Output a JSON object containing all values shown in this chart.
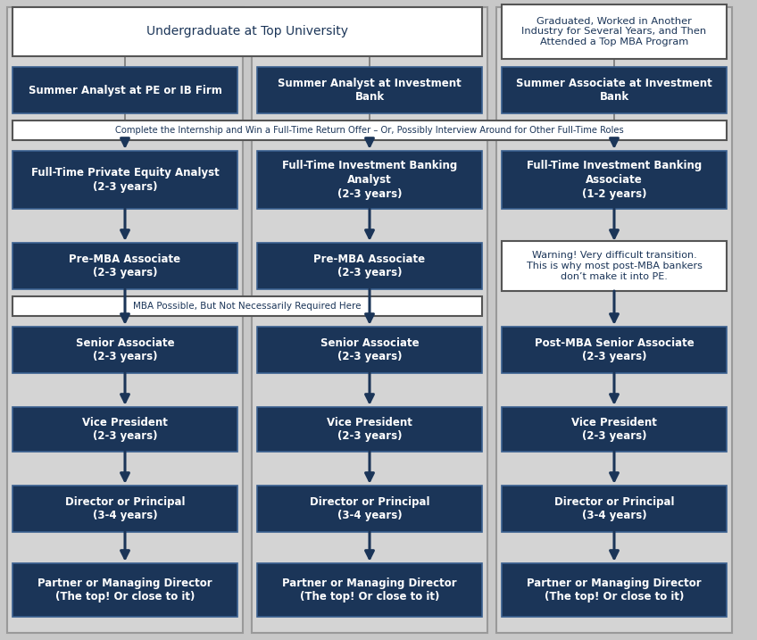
{
  "bg_color": "#c8c8c8",
  "dark_blue": "#1b3558",
  "white": "#ffffff",
  "arrow_color": "#1b3558",
  "text_dark": "#1b3558",
  "border_dark": "#555555",
  "col_bg": "#d0d0d0",
  "banner1": "Complete the Internship and Win a Full-Time Return Offer – Or, Possibly Interview Around for Other Full-Time Roles",
  "banner2": "MBA Possible, But Not Necessarily Required Here",
  "warning_text": "Warning! Very difficult transition.\nThis is why most post-MBA bankers\ndon’t make it into PE.",
  "intern_texts": [
    "Summer Analyst at PE or IB Firm",
    "Summer Analyst at Investment\nBank",
    "Summer Associate at Investment\nBank"
  ],
  "ft_texts": [
    "Full-Time Private Equity Analyst\n(2-3 years)",
    "Full-Time Investment Banking\nAnalyst\n(2-3 years)",
    "Full-Time Investment Banking\nAssociate\n(1-2 years)"
  ],
  "premba_texts": [
    "Pre-MBA Associate\n(2-3 years)",
    "Pre-MBA Associate\n(2-3 years)"
  ],
  "senior_texts": [
    "Senior Associate\n(2-3 years)",
    "Senior Associate\n(2-3 years)",
    "Post-MBA Senior Associate\n(2-3 years)"
  ],
  "vp_texts": [
    "Vice President\n(2-3 years)",
    "Vice President\n(2-3 years)",
    "Vice President\n(2-3 years)"
  ],
  "director_texts": [
    "Director or Principal\n(3-4 years)",
    "Director or Principal\n(3-4 years)",
    "Director or Principal\n(3-4 years)"
  ],
  "partner_texts": [
    "Partner or Managing Director\n(The top! Or close to it)",
    "Partner or Managing Director\n(The top! Or close to it)",
    "Partner or Managing Director\n(The top! Or close to it)"
  ]
}
